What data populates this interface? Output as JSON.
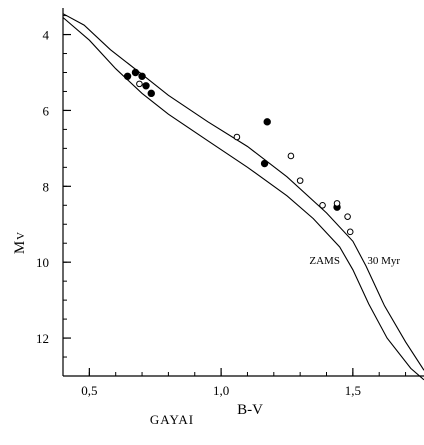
{
  "chart_data": {
    "type": "scatter",
    "title": "",
    "credit": "GAYAI",
    "xlabel": "B-V",
    "ylabel": {
      "main": "M",
      "sub": "V"
    },
    "xlim": [
      0.4,
      1.77
    ],
    "ylim": [
      13,
      3.3
    ],
    "y_inverted": true,
    "grid": false,
    "legend": "none",
    "x_ticks": [
      {
        "value": 0.5,
        "label": "0,5"
      },
      {
        "value": 1.0,
        "label": "1,0"
      },
      {
        "value": 1.5,
        "label": "1,5"
      }
    ],
    "y_ticks": [
      {
        "value": 4,
        "label": "4"
      },
      {
        "value": 6,
        "label": "6"
      },
      {
        "value": 8,
        "label": "8"
      },
      {
        "value": 10,
        "label": "10"
      },
      {
        "value": 12,
        "label": "12"
      }
    ],
    "x_minor_step": 0.1,
    "y_minor_step": 0.5,
    "curves": [
      {
        "name": "30 Myr",
        "x": [
          0.4,
          0.48,
          0.58,
          0.7,
          0.8,
          0.95,
          1.1,
          1.25,
          1.4,
          1.5,
          1.55,
          1.62,
          1.7,
          1.77
        ],
        "y": [
          3.45,
          3.75,
          4.4,
          5.05,
          5.6,
          6.3,
          6.95,
          7.75,
          8.7,
          9.45,
          10.1,
          11.15,
          12.1,
          12.85
        ]
      },
      {
        "name": "ZAMS",
        "x": [
          0.4,
          0.5,
          0.6,
          0.7,
          0.8,
          0.95,
          1.1,
          1.25,
          1.35,
          1.45,
          1.5,
          1.56,
          1.63,
          1.72,
          1.77
        ],
        "y": [
          3.55,
          4.15,
          4.9,
          5.55,
          6.1,
          6.8,
          7.5,
          8.25,
          8.85,
          9.6,
          10.2,
          11.1,
          12.0,
          12.8,
          13.1
        ]
      }
    ],
    "series": [
      {
        "name": "filled",
        "marker": "filled",
        "x": [
          0.645,
          0.675,
          0.7,
          0.715,
          0.735,
          1.165,
          1.175,
          1.44
        ],
        "y": [
          5.1,
          5.0,
          5.1,
          5.35,
          5.55,
          7.4,
          6.3,
          8.55
        ]
      },
      {
        "name": "open",
        "marker": "open",
        "x": [
          0.69,
          1.06,
          1.265,
          1.3,
          1.385,
          1.44,
          1.48,
          1.49
        ],
        "y": [
          5.3,
          6.7,
          7.2,
          7.85,
          8.5,
          8.45,
          8.8,
          9.2
        ]
      }
    ],
    "curve_labels": [
      {
        "text": "30 Myr",
        "x": 1.555,
        "y": 10.05
      },
      {
        "text": "ZAMS",
        "x": 1.335,
        "y": 10.05
      }
    ]
  }
}
